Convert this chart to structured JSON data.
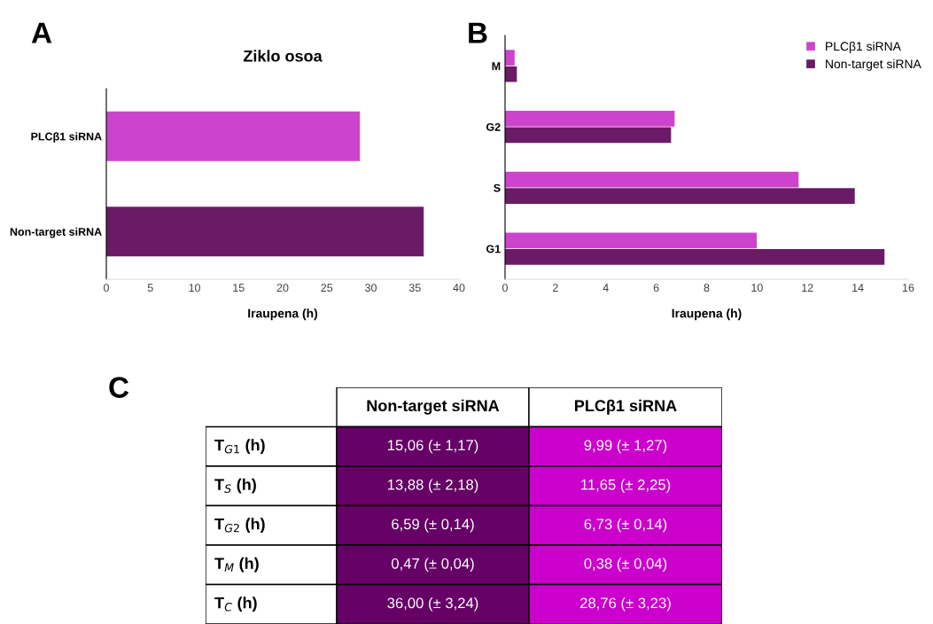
{
  "chart_data": [
    {
      "type": "bar",
      "orientation": "horizontal",
      "title": "Ziklo osoa",
      "annotations": [
        "A"
      ],
      "xlabel": "Iraupena (h)",
      "categories": [
        "PLCβ1 siRNA",
        "Non-target siRNA"
      ],
      "values": [
        28.76,
        36.0
      ],
      "colors": [
        "#cc44cc",
        "#6b1a66"
      ],
      "xlim": [
        0,
        40
      ],
      "xticks": [
        0,
        5,
        10,
        15,
        20,
        25,
        30,
        35,
        40
      ]
    },
    {
      "type": "bar",
      "orientation": "horizontal",
      "annotations": [
        "B"
      ],
      "xlabel": "Iraupena (h)",
      "categories": [
        "M",
        "G2",
        "S",
        "G1"
      ],
      "series": [
        {
          "name": "PLCβ1 siRNA",
          "color": "#cc44cc",
          "values": [
            0.38,
            6.73,
            11.65,
            9.99
          ]
        },
        {
          "name": "Non-target siRNA",
          "color": "#6b1a66",
          "values": [
            0.47,
            6.59,
            13.88,
            15.06
          ]
        }
      ],
      "xlim": [
        0,
        16
      ],
      "xticks": [
        0,
        2,
        4,
        6,
        8,
        10,
        12,
        14,
        16
      ],
      "legend": "top right"
    },
    {
      "type": "other",
      "annotations": [
        "C"
      ],
      "categories": [
        "T$_{G1}$ (h)",
        "T$_{S}$ (h)",
        "T$_{G2}$ (h)",
        "T$_{M}$ (h)",
        "T$_{C}$ (h)"
      ],
      "series": [
        {
          "name": "Non-target siRNA",
          "color": "#660066",
          "values": [
            15.06,
            13.88,
            6.59,
            0.47,
            36.0
          ],
          "value_labels": [
            "15,06 (± 1,17)",
            "13,88 (± 2,18)",
            "6,59 (± 0,14)",
            "0,47 (± 0,04)",
            "36,00 (± 3,24)"
          ]
        },
        {
          "name": "PLCβ1 siRNA",
          "color": "#cc00cc",
          "values": [
            9.99,
            11.65,
            6.73,
            0.38,
            28.76
          ],
          "value_labels": [
            "9,99 (± 1,27)",
            "11,65 (± 2,25)",
            "6,73 (± 0,14)",
            "0,38 (± 0,04)",
            "28,76 (± 3,23)"
          ]
        }
      ]
    }
  ]
}
